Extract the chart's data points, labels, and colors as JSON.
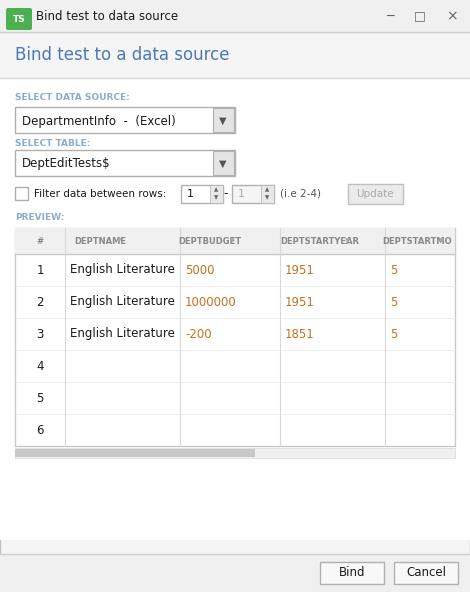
{
  "title_bar_text": "Bind test to data source",
  "header_text": "Bind test to a data source",
  "header_text_color": "#4a7ab5",
  "label_color": "#8aadcc",
  "label_datasource": "SELECT DATA SOURCE:",
  "dropdown1_text": "DepartmentInfo  -  (Excel)",
  "label_table": "SELECT TABLE:",
  "dropdown2_text": "DeptEditTests$",
  "filter_label": "Filter data between rows:",
  "filter_val1": "1",
  "filter_val2": "1",
  "filter_hint": "(i.e 2-4)",
  "update_btn": "Update",
  "preview_label": "PREVIEW:",
  "col_headers": [
    "#",
    "DEPTNAME",
    "DEPTBUDGET",
    "DEPTSTARTYEAR",
    "DEPTSTARTMO→"
  ],
  "rows": [
    [
      "1",
      "English Literature",
      "5000",
      "1951",
      "5"
    ],
    [
      "2",
      "English Literature",
      "1000000",
      "1951",
      "5"
    ],
    [
      "3",
      "English Literature",
      "-200",
      "1851",
      "5"
    ],
    [
      "4",
      "",
      "",
      "",
      ""
    ],
    [
      "5",
      "",
      "",
      "",
      ""
    ],
    [
      "6",
      "",
      "",
      "",
      ""
    ]
  ],
  "data_text_color": "#1a1a1a",
  "orange_color": "#c87020",
  "bind_btn": "Bind",
  "cancel_btn": "Cancel",
  "icon_color": "#4caf50"
}
